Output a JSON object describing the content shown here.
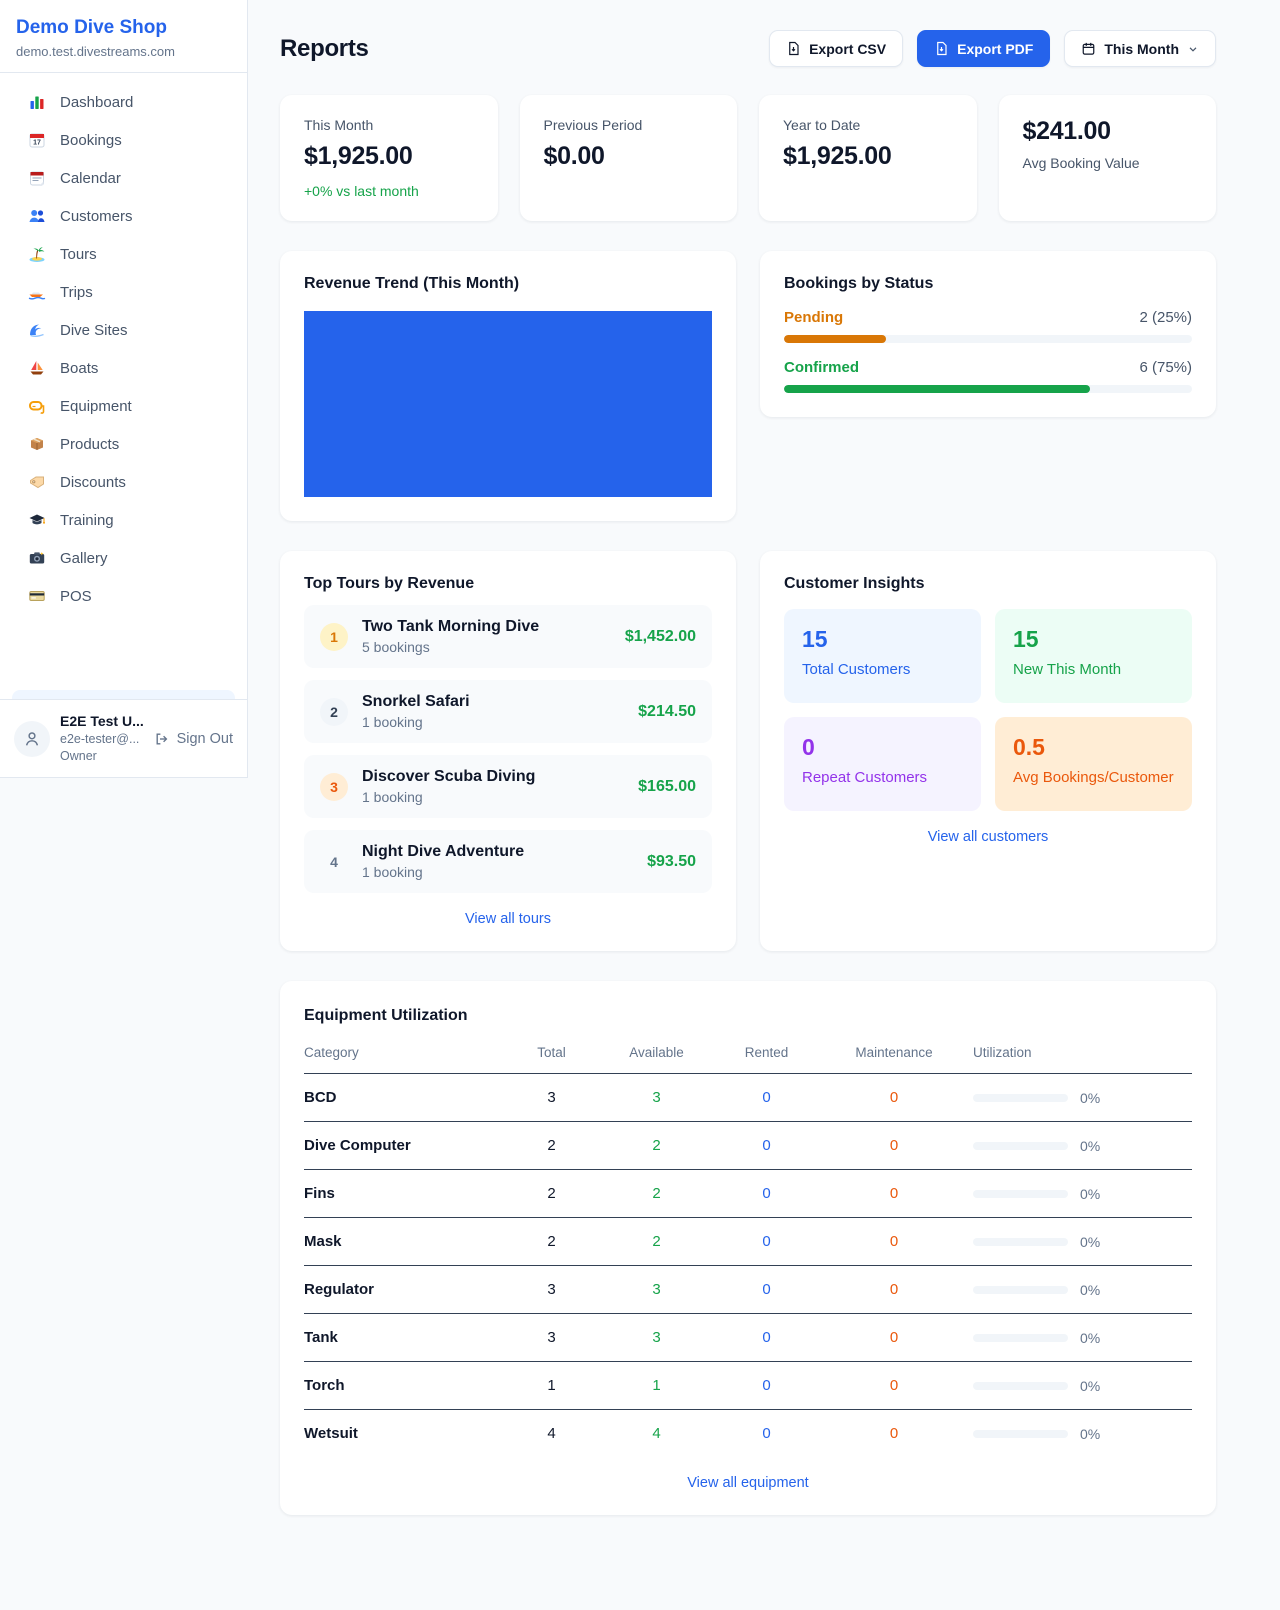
{
  "colors": {
    "accent": "#2563eb",
    "green": "#16a34a",
    "amber": "#d97706",
    "orange": "#ea580c",
    "purple": "#9333ea"
  },
  "sidebar": {
    "brand": {
      "name": "Demo Dive Shop",
      "domain": "demo.test.divestreams.com"
    },
    "nav": [
      {
        "id": "dashboard",
        "label": "Dashboard",
        "icon": "bar-chart-icon"
      },
      {
        "id": "bookings",
        "label": "Bookings",
        "icon": "calendar-date-icon"
      },
      {
        "id": "calendar",
        "label": "Calendar",
        "icon": "tear-calendar-icon"
      },
      {
        "id": "customers",
        "label": "Customers",
        "icon": "people-icon"
      },
      {
        "id": "tours",
        "label": "Tours",
        "icon": "island-icon"
      },
      {
        "id": "trips",
        "label": "Trips",
        "icon": "speedboat-icon"
      },
      {
        "id": "dive-sites",
        "label": "Dive Sites",
        "icon": "wave-icon"
      },
      {
        "id": "boats",
        "label": "Boats",
        "icon": "sailboat-icon"
      },
      {
        "id": "equipment",
        "label": "Equipment",
        "icon": "dive-mask-icon"
      },
      {
        "id": "products",
        "label": "Products",
        "icon": "package-icon"
      },
      {
        "id": "discounts",
        "label": "Discounts",
        "icon": "tag-icon"
      },
      {
        "id": "training",
        "label": "Training",
        "icon": "grad-cap-icon"
      },
      {
        "id": "gallery",
        "label": "Gallery",
        "icon": "camera-icon"
      },
      {
        "id": "pos",
        "label": "POS",
        "icon": "credit-card-icon"
      }
    ],
    "user": {
      "name": "E2E Test U...",
      "email": "e2e-tester@...",
      "role": "Owner",
      "sign_out_label": "Sign Out"
    }
  },
  "header": {
    "title": "Reports",
    "export_csv_label": "Export CSV",
    "export_pdf_label": "Export PDF",
    "period_label": "This Month"
  },
  "stats": [
    {
      "label": "This Month",
      "value": "$1,925.00",
      "delta": "+0% vs last month"
    },
    {
      "label": "Previous Period",
      "value": "$0.00"
    },
    {
      "label": "Year to Date",
      "value": "$1,925.00"
    },
    {
      "label": "Avg Booking Value",
      "value": "$241.00"
    }
  ],
  "revenue_trend": {
    "title": "Revenue Trend (This Month)",
    "bar_color": "#2563eb"
  },
  "bookings_by_status": {
    "title": "Bookings by Status",
    "rows": [
      {
        "label": "Pending",
        "value": "2 (25%)",
        "pct": 25,
        "color": "#d97706"
      },
      {
        "label": "Confirmed",
        "value": "6 (75%)",
        "pct": 75,
        "color": "#16a34a"
      }
    ]
  },
  "top_tours": {
    "title": "Top Tours by Revenue",
    "view_all_label": "View all tours",
    "items": [
      {
        "rank": "1",
        "name": "Two Tank Morning Dive",
        "bookings": "5 bookings",
        "revenue": "$1,452.00",
        "badge_bg": "#fef3c7",
        "badge_color": "#d97706"
      },
      {
        "rank": "2",
        "name": "Snorkel Safari",
        "bookings": "1 booking",
        "revenue": "$214.50",
        "badge_bg": "#f1f5f9",
        "badge_color": "#334155"
      },
      {
        "rank": "3",
        "name": "Discover Scuba Diving",
        "bookings": "1 booking",
        "revenue": "$165.00",
        "badge_bg": "#ffedd5",
        "badge_color": "#ea580c"
      },
      {
        "rank": "4",
        "name": "Night Dive Adventure",
        "bookings": "1 booking",
        "revenue": "$93.50",
        "badge_bg": "transparent",
        "badge_color": "#64748b"
      }
    ]
  },
  "customer_insights": {
    "title": "Customer Insights",
    "view_all_label": "View all customers",
    "tiles": [
      {
        "value": "15",
        "label": "Total Customers",
        "bg": "#eff6ff",
        "color": "#2563eb"
      },
      {
        "value": "15",
        "label": "New This Month",
        "bg": "#ecfdf5",
        "color": "#16a34a"
      },
      {
        "value": "0",
        "label": "Repeat Customers",
        "bg": "#f5f3ff",
        "color": "#9333ea"
      },
      {
        "value": "0.5",
        "label": "Avg Bookings/Customer",
        "bg": "#ffedd5",
        "color": "#ea580c"
      }
    ]
  },
  "equipment": {
    "title": "Equipment Utilization",
    "view_all_label": "View all equipment",
    "columns": [
      "Category",
      "Total",
      "Available",
      "Rented",
      "Maintenance",
      "Utilization"
    ],
    "rows": [
      {
        "category": "BCD",
        "total": "3",
        "available": "3",
        "rented": "0",
        "maintenance": "0",
        "utilization": "0%",
        "pct": 0
      },
      {
        "category": "Dive Computer",
        "total": "2",
        "available": "2",
        "rented": "0",
        "maintenance": "0",
        "utilization": "0%",
        "pct": 0
      },
      {
        "category": "Fins",
        "total": "2",
        "available": "2",
        "rented": "0",
        "maintenance": "0",
        "utilization": "0%",
        "pct": 0
      },
      {
        "category": "Mask",
        "total": "2",
        "available": "2",
        "rented": "0",
        "maintenance": "0",
        "utilization": "0%",
        "pct": 0
      },
      {
        "category": "Regulator",
        "total": "3",
        "available": "3",
        "rented": "0",
        "maintenance": "0",
        "utilization": "0%",
        "pct": 0
      },
      {
        "category": "Tank",
        "total": "3",
        "available": "3",
        "rented": "0",
        "maintenance": "0",
        "utilization": "0%",
        "pct": 0
      },
      {
        "category": "Torch",
        "total": "1",
        "available": "1",
        "rented": "0",
        "maintenance": "0",
        "utilization": "0%",
        "pct": 0
      },
      {
        "category": "Wetsuit",
        "total": "4",
        "available": "4",
        "rented": "0",
        "maintenance": "0",
        "utilization": "0%",
        "pct": 0
      }
    ]
  }
}
